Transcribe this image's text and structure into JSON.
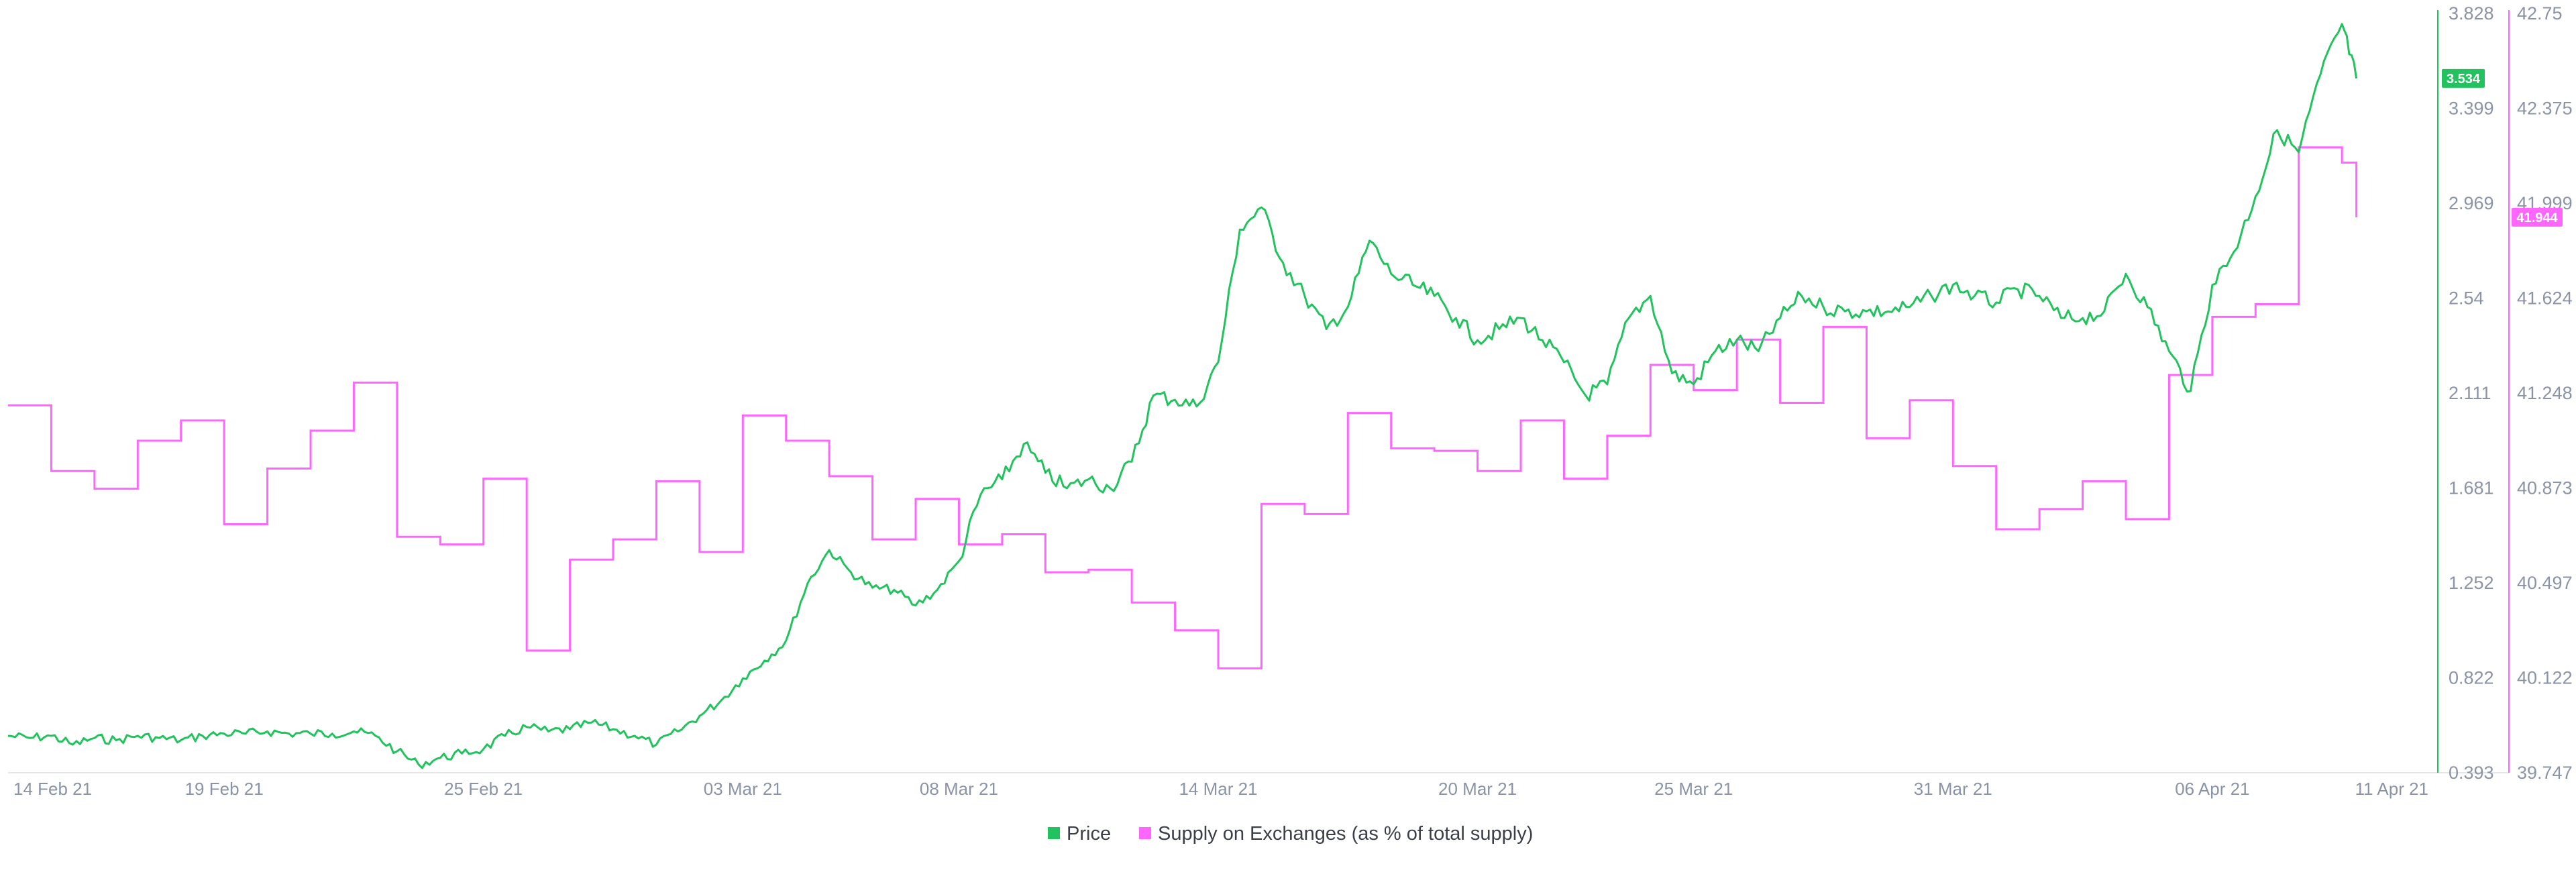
{
  "chart_data": {
    "type": "line",
    "x_axis": {
      "range": [
        "2021-02-14",
        "2021-04-11"
      ],
      "ticks": [
        {
          "date": "2021-02-14",
          "label": "14 Feb 21"
        },
        {
          "date": "2021-02-19",
          "label": "19 Feb 21"
        },
        {
          "date": "2021-02-25",
          "label": "25 Feb 21"
        },
        {
          "date": "2021-03-03",
          "label": "03 Mar 21"
        },
        {
          "date": "2021-03-08",
          "label": "08 Mar 21"
        },
        {
          "date": "2021-03-14",
          "label": "14 Mar 21"
        },
        {
          "date": "2021-03-20",
          "label": "20 Mar 21"
        },
        {
          "date": "2021-03-25",
          "label": "25 Mar 21"
        },
        {
          "date": "2021-03-31",
          "label": "31 Mar 21"
        },
        {
          "date": "2021-04-06",
          "label": "06 Apr 21"
        },
        {
          "date": "2021-04-11",
          "label": "11 Apr 21"
        }
      ]
    },
    "y_axis_left": {
      "range": [
        0.393,
        3.828
      ],
      "tick_labels": [
        "3.828",
        "3.399",
        "2.969",
        "2.54",
        "2.111",
        "1.681",
        "1.252",
        "0.822",
        "0.393"
      ],
      "color": "#22c35e"
    },
    "y_axis_right": {
      "range": [
        39.747,
        42.75
      ],
      "tick_labels": [
        "42.75",
        "42.375",
        "41.999",
        "41.624",
        "41.248",
        "40.873",
        "40.497",
        "40.122",
        "39.747"
      ],
      "color": "#ff66ff"
    },
    "grid": false,
    "legend_position": "bottom-center",
    "series": [
      {
        "name": "Price",
        "color": "#22c35e",
        "axis": "left",
        "current_label": "3.534",
        "points": [
          [
            "2021-02-14",
            0.56
          ],
          [
            "2021-02-14T12",
            0.55
          ],
          [
            "2021-02-15",
            0.56
          ],
          [
            "2021-02-15T12",
            0.52
          ],
          [
            "2021-02-16",
            0.55
          ],
          [
            "2021-02-16T12",
            0.54
          ],
          [
            "2021-02-17",
            0.56
          ],
          [
            "2021-02-17T12",
            0.55
          ],
          [
            "2021-02-18",
            0.54
          ],
          [
            "2021-02-18T12",
            0.56
          ],
          [
            "2021-02-19",
            0.57
          ],
          [
            "2021-02-19T12",
            0.57
          ],
          [
            "2021-02-20",
            0.58
          ],
          [
            "2021-02-20T12",
            0.57
          ],
          [
            "2021-02-21",
            0.57
          ],
          [
            "2021-02-21T12",
            0.57
          ],
          [
            "2021-02-22",
            0.58
          ],
          [
            "2021-02-22T12",
            0.56
          ],
          [
            "2021-02-23",
            0.49
          ],
          [
            "2021-02-23T12",
            0.43
          ],
          [
            "2021-02-24",
            0.46
          ],
          [
            "2021-02-24T12",
            0.48
          ],
          [
            "2021-02-25",
            0.5
          ],
          [
            "2021-02-25T12",
            0.56
          ],
          [
            "2021-02-26",
            0.6
          ],
          [
            "2021-02-26T12",
            0.58
          ],
          [
            "2021-02-27",
            0.59
          ],
          [
            "2021-02-27T12",
            0.62
          ],
          [
            "2021-02-28",
            0.59
          ],
          [
            "2021-02-28T12",
            0.56
          ],
          [
            "2021-03-01",
            0.52
          ],
          [
            "2021-03-01T12",
            0.58
          ],
          [
            "2021-03-02",
            0.65
          ],
          [
            "2021-03-02T12",
            0.72
          ],
          [
            "2021-03-03",
            0.82
          ],
          [
            "2021-03-03T12",
            0.9
          ],
          [
            "2021-03-04",
            0.99
          ],
          [
            "2021-03-04T12",
            1.25
          ],
          [
            "2021-03-05",
            1.4
          ],
          [
            "2021-03-05T12",
            1.3
          ],
          [
            "2021-03-06",
            1.23
          ],
          [
            "2021-03-06T12",
            1.22
          ],
          [
            "2021-03-07",
            1.15
          ],
          [
            "2021-03-07T12",
            1.22
          ],
          [
            "2021-03-08",
            1.35
          ],
          [
            "2021-03-08T12",
            1.65
          ],
          [
            "2021-03-09",
            1.72
          ],
          [
            "2021-03-09T12",
            1.88
          ],
          [
            "2021-03-10",
            1.75
          ],
          [
            "2021-03-10T12",
            1.68
          ],
          [
            "2021-03-11",
            1.72
          ],
          [
            "2021-03-11T12",
            1.68
          ],
          [
            "2021-03-12",
            1.8
          ],
          [
            "2021-03-12T12",
            2.1
          ],
          [
            "2021-03-13",
            2.08
          ],
          [
            "2021-03-13T12",
            2.05
          ],
          [
            "2021-03-14",
            2.25
          ],
          [
            "2021-03-14T12",
            2.85
          ],
          [
            "2021-03-15",
            2.95
          ],
          [
            "2021-03-15T12",
            2.7
          ],
          [
            "2021-03-16",
            2.55
          ],
          [
            "2021-03-16T12",
            2.4
          ],
          [
            "2021-03-17",
            2.5
          ],
          [
            "2021-03-17T12",
            2.8
          ],
          [
            "2021-03-18",
            2.65
          ],
          [
            "2021-03-18T12",
            2.6
          ],
          [
            "2021-03-19",
            2.55
          ],
          [
            "2021-03-19T12",
            2.45
          ],
          [
            "2021-03-20",
            2.35
          ],
          [
            "2021-03-20T12",
            2.4
          ],
          [
            "2021-03-21",
            2.45
          ],
          [
            "2021-03-21T12",
            2.35
          ],
          [
            "2021-03-22",
            2.25
          ],
          [
            "2021-03-22T12",
            2.1
          ],
          [
            "2021-03-23",
            2.15
          ],
          [
            "2021-03-23T12",
            2.45
          ],
          [
            "2021-03-24",
            2.55
          ],
          [
            "2021-03-24T12",
            2.2
          ],
          [
            "2021-03-25",
            2.15
          ],
          [
            "2021-03-25T12",
            2.3
          ],
          [
            "2021-03-26",
            2.35
          ],
          [
            "2021-03-26T12",
            2.3
          ],
          [
            "2021-03-27",
            2.45
          ],
          [
            "2021-03-27T12",
            2.55
          ],
          [
            "2021-03-28",
            2.5
          ],
          [
            "2021-03-28T12",
            2.48
          ],
          [
            "2021-03-29",
            2.48
          ],
          [
            "2021-03-29T12",
            2.48
          ],
          [
            "2021-03-30",
            2.5
          ],
          [
            "2021-03-30T12",
            2.55
          ],
          [
            "2021-03-31",
            2.6
          ],
          [
            "2021-03-31T12",
            2.55
          ],
          [
            "2021-04-01",
            2.52
          ],
          [
            "2021-04-01T12",
            2.58
          ],
          [
            "2021-04-02",
            2.55
          ],
          [
            "2021-04-02T12",
            2.45
          ],
          [
            "2021-04-03",
            2.45
          ],
          [
            "2021-04-03T12",
            2.48
          ],
          [
            "2021-04-04",
            2.65
          ],
          [
            "2021-04-04T12",
            2.5
          ],
          [
            "2021-04-05",
            2.3
          ],
          [
            "2021-04-05T12",
            2.12
          ],
          [
            "2021-04-06",
            2.6
          ],
          [
            "2021-04-06T12",
            2.75
          ],
          [
            "2021-04-07",
            3.0
          ],
          [
            "2021-04-07T12",
            3.3
          ],
          [
            "2021-04-08",
            3.2
          ],
          [
            "2021-04-08T12",
            3.55
          ],
          [
            "2021-04-09",
            3.78
          ],
          [
            "2021-04-09T08",
            3.534
          ]
        ]
      },
      {
        "name": "Supply on Exchanges (as % of total supply)",
        "color": "#ff66ff",
        "axis": "right",
        "current_label": "41.944",
        "step_points": [
          [
            "2021-02-14",
            41.2
          ],
          [
            "2021-02-15",
            40.94
          ],
          [
            "2021-02-16",
            40.87
          ],
          [
            "2021-02-17",
            41.06
          ],
          [
            "2021-02-18",
            41.14
          ],
          [
            "2021-02-19",
            40.73
          ],
          [
            "2021-02-20",
            40.95
          ],
          [
            "2021-02-21",
            41.1
          ],
          [
            "2021-02-22",
            41.29
          ],
          [
            "2021-02-23",
            40.68
          ],
          [
            "2021-02-24",
            40.65
          ],
          [
            "2021-02-25",
            40.91
          ],
          [
            "2021-02-26",
            40.23
          ],
          [
            "2021-02-27",
            40.59
          ],
          [
            "2021-02-28",
            40.67
          ],
          [
            "2021-03-01",
            40.9
          ],
          [
            "2021-03-02",
            40.62
          ],
          [
            "2021-03-03",
            41.16
          ],
          [
            "2021-03-04",
            41.06
          ],
          [
            "2021-03-05",
            40.92
          ],
          [
            "2021-03-06",
            40.67
          ],
          [
            "2021-03-07",
            40.83
          ],
          [
            "2021-03-08",
            40.65
          ],
          [
            "2021-03-09",
            40.69
          ],
          [
            "2021-03-10",
            40.54
          ],
          [
            "2021-03-11",
            40.55
          ],
          [
            "2021-03-12",
            40.42
          ],
          [
            "2021-03-13",
            40.31
          ],
          [
            "2021-03-14",
            40.16
          ],
          [
            "2021-03-15",
            40.81
          ],
          [
            "2021-03-16",
            40.77
          ],
          [
            "2021-03-17",
            41.17
          ],
          [
            "2021-03-18",
            41.03
          ],
          [
            "2021-03-19",
            41.02
          ],
          [
            "2021-03-20",
            40.94
          ],
          [
            "2021-03-21",
            41.14
          ],
          [
            "2021-03-22",
            40.91
          ],
          [
            "2021-03-23",
            41.08
          ],
          [
            "2021-03-24",
            41.36
          ],
          [
            "2021-03-25",
            41.26
          ],
          [
            "2021-03-26",
            41.46
          ],
          [
            "2021-03-27",
            41.21
          ],
          [
            "2021-03-28",
            41.51
          ],
          [
            "2021-03-29",
            41.07
          ],
          [
            "2021-03-30",
            41.22
          ],
          [
            "2021-03-31",
            40.96
          ],
          [
            "2021-04-01",
            40.71
          ],
          [
            "2021-04-02",
            40.79
          ],
          [
            "2021-04-03",
            40.9
          ],
          [
            "2021-04-04",
            40.75
          ],
          [
            "2021-04-05",
            41.32
          ],
          [
            "2021-04-06",
            41.55
          ],
          [
            "2021-04-07",
            41.6
          ],
          [
            "2021-04-08",
            42.22
          ],
          [
            "2021-04-09",
            42.16
          ],
          [
            "2021-04-09T08",
            41.944
          ]
        ]
      }
    ],
    "legend": [
      {
        "label": "Price",
        "color": "#22c35e"
      },
      {
        "label": "Supply on Exchanges (as % of total supply)",
        "color": "#ff66ff"
      }
    ]
  }
}
